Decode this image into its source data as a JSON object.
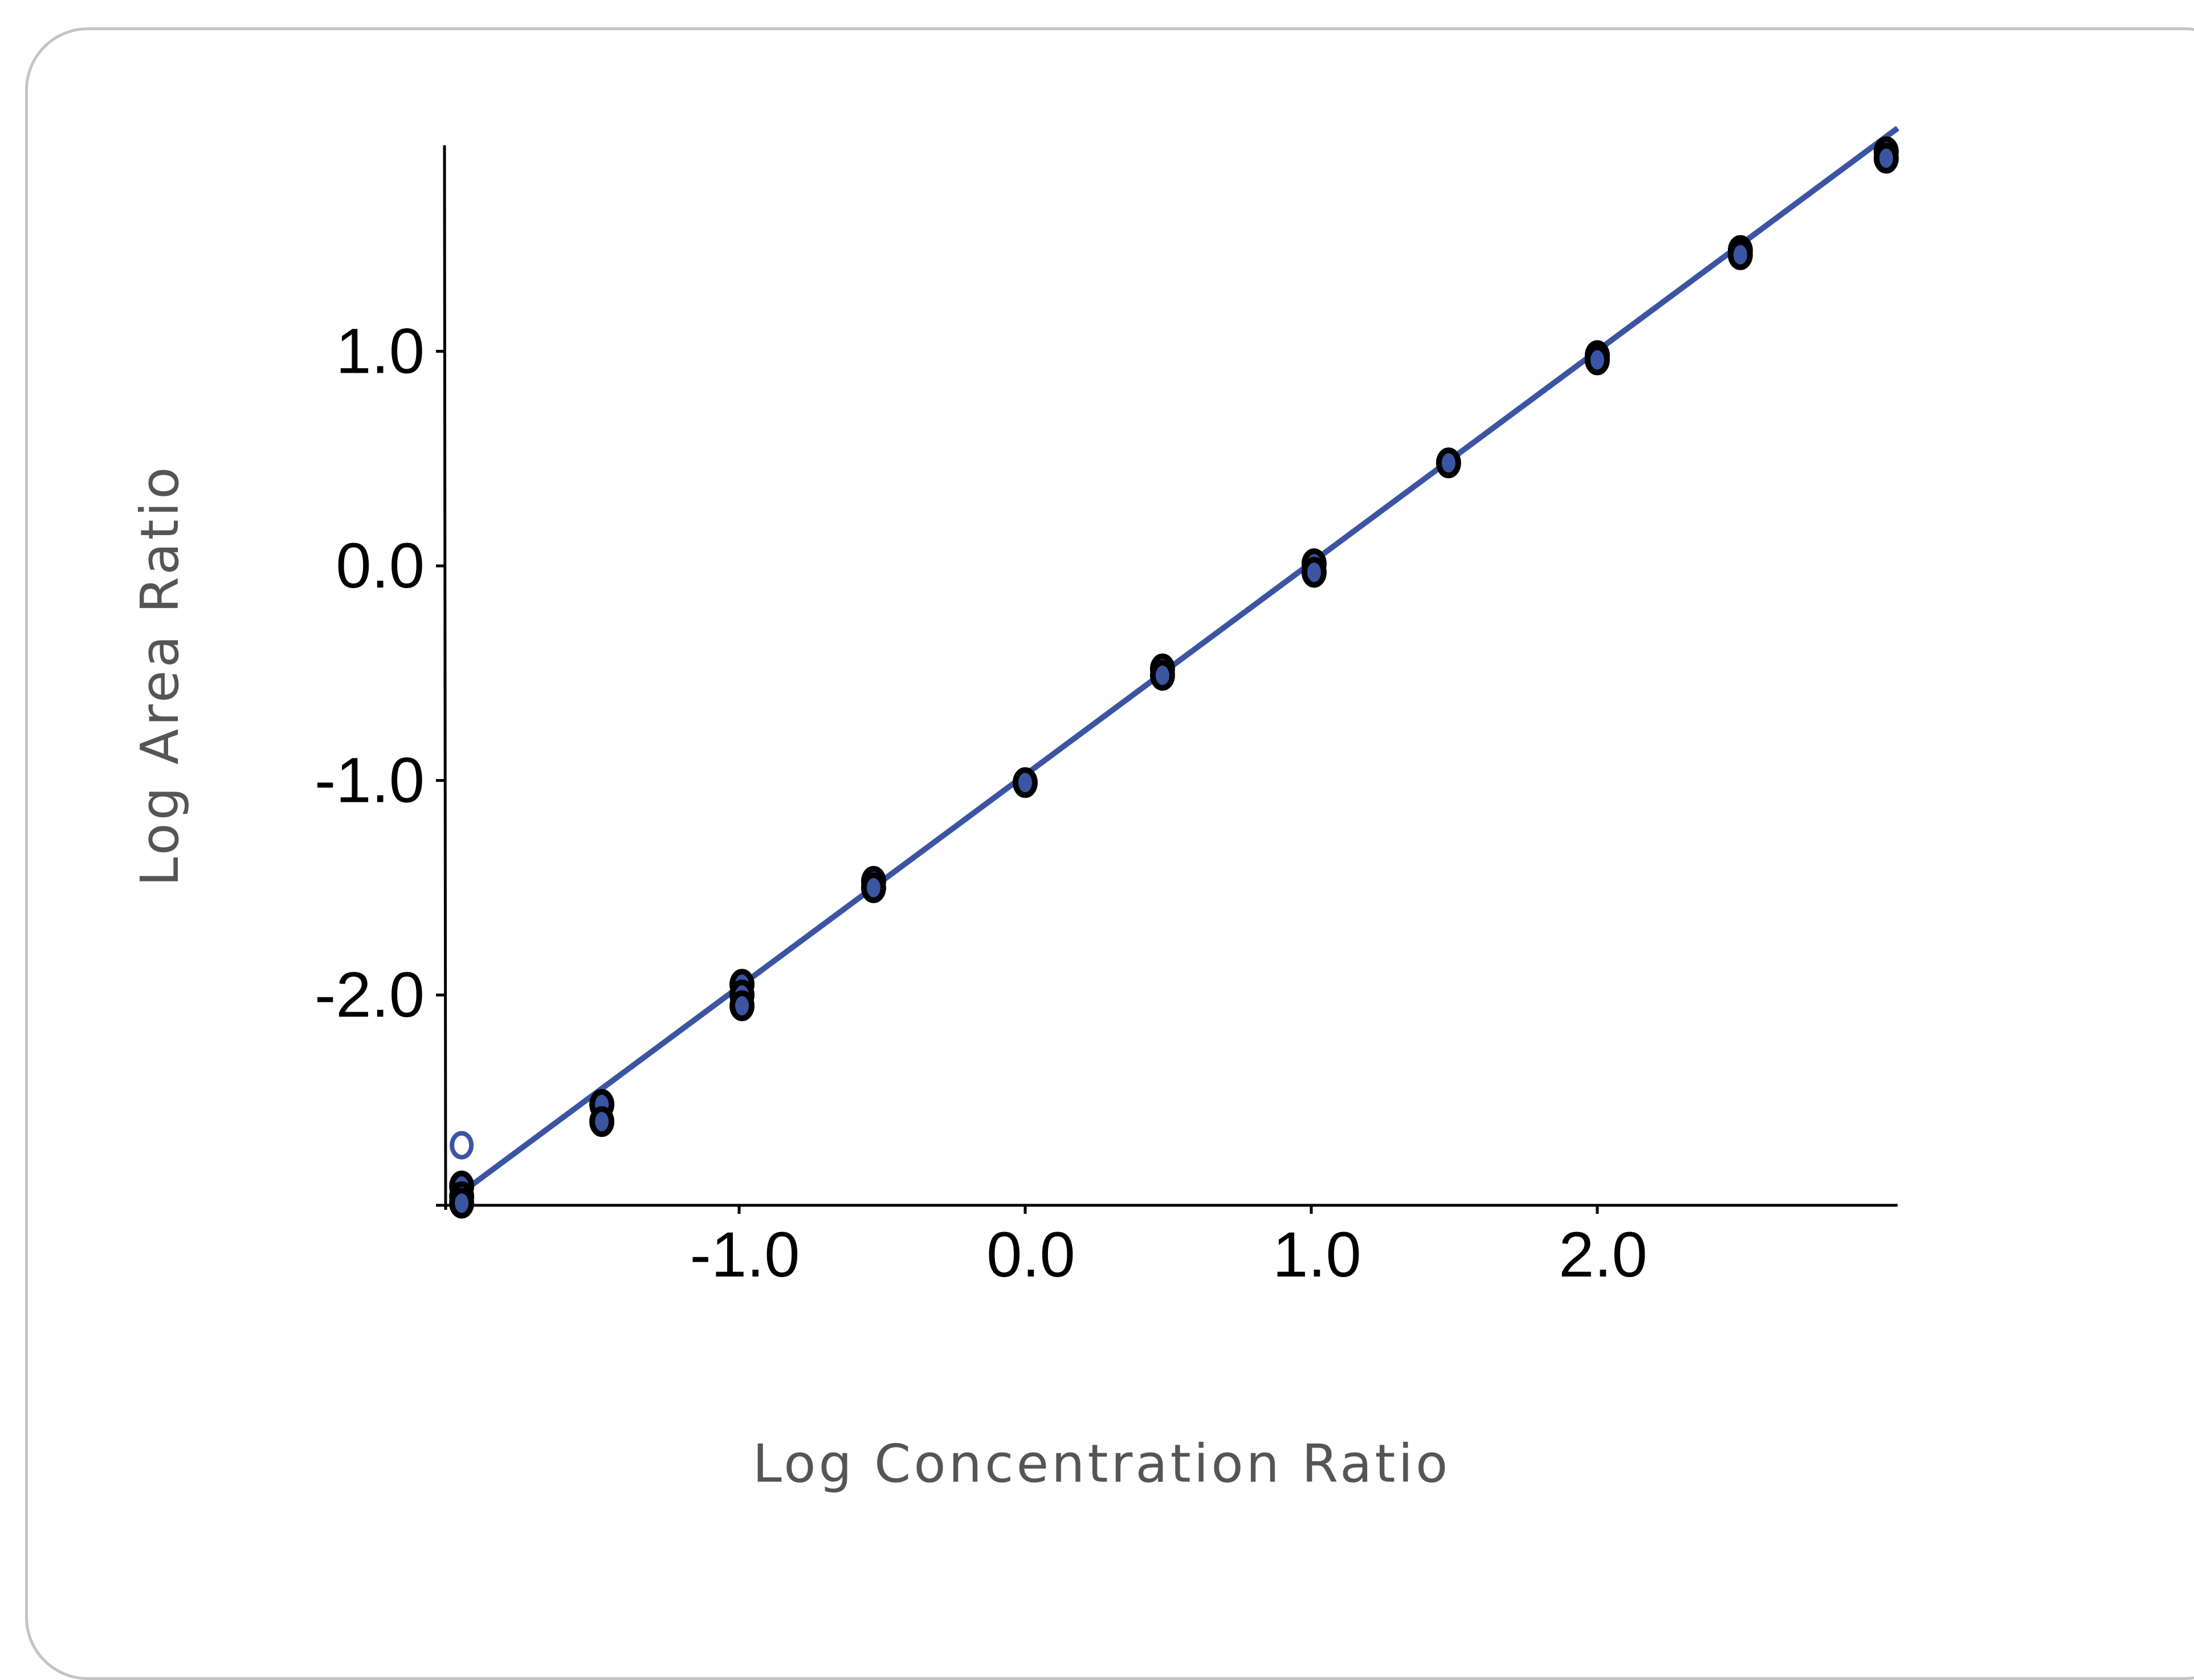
{
  "colors": {
    "series": "#3b55a3",
    "marker_edge": "#000000",
    "axis": "#000000",
    "axis_title": "#555555",
    "card_border": "#c4c4c4"
  },
  "chart_data": {
    "type": "scatter",
    "title": "",
    "xlabel": "Log Concentration Ratio",
    "ylabel": "Log Area Ratio",
    "xlim": [
      -2.03,
      3.05
    ],
    "ylim": [
      -2.98,
      1.96
    ],
    "xticks": [
      {
        "value": -1.0,
        "label": "-1.0"
      },
      {
        "value": 0.0,
        "label": "0.0"
      },
      {
        "value": 1.0,
        "label": "1.0"
      },
      {
        "value": 2.0,
        "label": "2.0"
      }
    ],
    "yticks": [
      {
        "value": 1.0,
        "label": "1.0"
      },
      {
        "value": 0.0,
        "label": "0.0"
      },
      {
        "value": -1.0,
        "label": "-1.0"
      },
      {
        "value": -2.0,
        "label": "-2.0"
      }
    ],
    "grid": false,
    "legend": "none",
    "fit_line": {
      "x": [
        -2.0,
        3.05
      ],
      "y": [
        -2.95,
        2.04
      ]
    },
    "series": [
      {
        "marker": "filled",
        "points": [
          {
            "x": -1.97,
            "y": -2.89
          },
          {
            "x": -1.97,
            "y": -2.94
          },
          {
            "x": -1.97,
            "y": -2.97
          },
          {
            "x": -1.48,
            "y": -2.51
          },
          {
            "x": -1.48,
            "y": -2.59
          },
          {
            "x": -0.99,
            "y": -1.95
          },
          {
            "x": -0.99,
            "y": -2.0
          },
          {
            "x": -0.99,
            "y": -2.05
          },
          {
            "x": -0.53,
            "y": -1.47
          },
          {
            "x": -0.53,
            "y": -1.5
          },
          {
            "x": 0.0,
            "y": -1.01
          },
          {
            "x": 0.48,
            "y": -0.48
          },
          {
            "x": 0.48,
            "y": -0.51
          },
          {
            "x": 1.01,
            "y": 0.01
          },
          {
            "x": 1.01,
            "y": -0.03
          },
          {
            "x": 1.48,
            "y": 0.48
          },
          {
            "x": 2.0,
            "y": 0.98
          },
          {
            "x": 2.0,
            "y": 0.96
          },
          {
            "x": 2.5,
            "y": 1.47
          },
          {
            "x": 2.5,
            "y": 1.45
          },
          {
            "x": 3.01,
            "y": 1.93
          },
          {
            "x": 3.01,
            "y": 1.9
          }
        ]
      },
      {
        "marker": "open",
        "points": [
          {
            "x": -1.97,
            "y": -2.7
          }
        ]
      }
    ]
  }
}
